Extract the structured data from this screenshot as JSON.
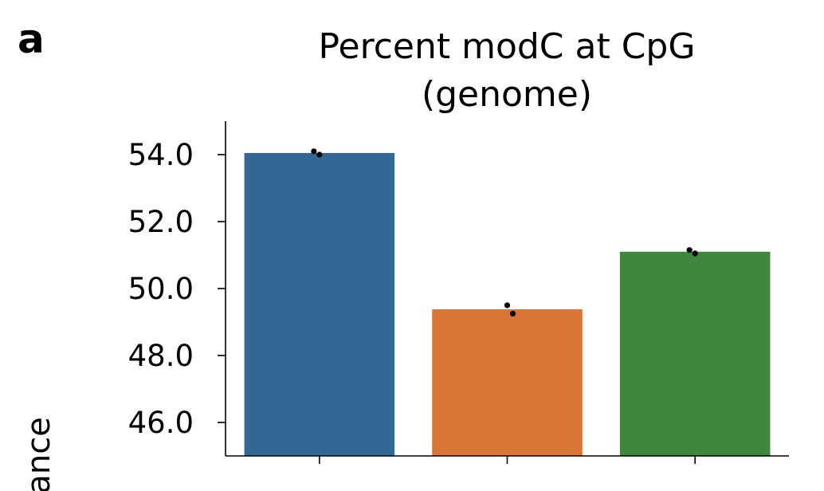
{
  "panel_label": "a",
  "chart_data": {
    "type": "bar",
    "title_lines": [
      "Percent modC at CpG",
      "(genome)"
    ],
    "ylabel": "nance",
    "categories": [
      "",
      "",
      ""
    ],
    "values": [
      54.05,
      49.38,
      51.1
    ],
    "points": [
      [
        54.1,
        54.0
      ],
      [
        49.5,
        49.25
      ],
      [
        51.15,
        51.05
      ]
    ],
    "colors": [
      "#336895",
      "#d97637",
      "#3e873c"
    ],
    "yticks": [
      46.0,
      48.0,
      50.0,
      52.0,
      54.0
    ],
    "ytick_labels": [
      "46.0",
      "48.0",
      "50.0",
      "52.0",
      "54.0"
    ],
    "ylim": [
      45.0,
      55.0
    ]
  }
}
